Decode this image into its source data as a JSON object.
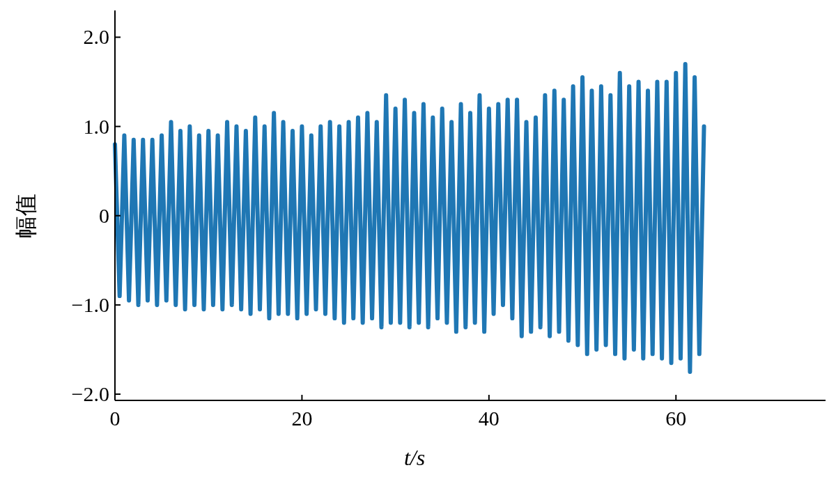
{
  "chart_data": {
    "type": "line",
    "xlabel": "t/s",
    "ylabel": "幅值",
    "xlim": [
      0,
      76
    ],
    "xticks": [
      0,
      20,
      40,
      60
    ],
    "ylim": [
      -2.07,
      2.3
    ],
    "yticks": [
      {
        "value": -2.0,
        "label": "−2.0"
      },
      {
        "value": -1.0,
        "label": "−1.0"
      },
      0,
      {
        "value": 1.0,
        "label": "1.0"
      },
      {
        "value": 2.0,
        "label": "2.0"
      }
    ],
    "grid": false,
    "marker": "none",
    "line_style": "solid",
    "x": [
      0,
      0.5,
      1,
      1.5,
      2,
      2.5,
      3,
      3.5,
      4,
      4.5,
      5,
      5.5,
      6,
      6.5,
      7,
      7.5,
      8,
      8.5,
      9,
      9.5,
      10,
      10.5,
      11,
      11.5,
      12,
      12.5,
      13,
      13.5,
      14,
      14.5,
      15,
      15.5,
      16,
      16.5,
      17,
      17.5,
      18,
      18.5,
      19,
      19.5,
      20,
      20.5,
      21,
      21.5,
      22,
      22.5,
      23,
      23.5,
      24,
      24.5,
      25,
      25.5,
      26,
      26.5,
      27,
      27.5,
      28,
      28.5,
      29,
      29.5,
      30,
      30.5,
      31,
      31.5,
      32,
      32.5,
      33,
      33.5,
      34,
      34.5,
      35,
      35.5,
      36,
      36.5,
      37,
      37.5,
      38,
      38.5,
      39,
      39.5,
      40,
      40.5,
      41,
      41.5,
      42,
      42.5,
      43,
      43.5,
      44,
      44.5,
      45,
      45.5,
      46,
      46.5,
      47,
      47.5,
      48,
      48.5,
      49,
      49.5,
      50,
      50.5,
      51,
      51.5,
      52,
      52.5,
      53,
      53.5,
      54,
      54.5,
      55,
      55.5,
      56,
      56.5,
      57,
      57.5,
      58,
      58.5,
      59,
      59.5,
      60,
      60.5,
      61,
      61.5,
      62,
      62.5,
      63
    ],
    "series": [
      {
        "color": "#1f77b4",
        "values": [
          0.8,
          -0.9,
          0.9,
          -0.95,
          0.85,
          -1.0,
          0.85,
          -0.95,
          0.85,
          -1.0,
          0.9,
          -0.95,
          1.05,
          -1.0,
          0.95,
          -1.05,
          1.0,
          -1.0,
          0.9,
          -1.05,
          0.95,
          -1.0,
          0.9,
          -1.05,
          1.05,
          -1.0,
          1.0,
          -1.05,
          0.95,
          -1.1,
          1.1,
          -1.05,
          1.0,
          -1.15,
          1.15,
          -1.1,
          1.05,
          -1.1,
          0.95,
          -1.15,
          1.0,
          -1.1,
          0.9,
          -1.05,
          1.0,
          -1.1,
          1.05,
          -1.15,
          1.0,
          -1.2,
          1.05,
          -1.15,
          1.1,
          -1.2,
          1.15,
          -1.15,
          1.05,
          -1.25,
          1.35,
          -1.2,
          1.2,
          -1.2,
          1.3,
          -1.25,
          1.15,
          -1.2,
          1.25,
          -1.25,
          1.1,
          -1.15,
          1.2,
          -1.2,
          1.05,
          -1.3,
          1.25,
          -1.25,
          1.15,
          -1.2,
          1.35,
          -1.3,
          1.2,
          -1.1,
          1.25,
          -1.0,
          1.3,
          -1.15,
          1.3,
          -1.35,
          1.05,
          -1.3,
          1.1,
          -1.25,
          1.35,
          -1.35,
          1.4,
          -1.3,
          1.3,
          -1.4,
          1.45,
          -1.45,
          1.55,
          -1.55,
          1.4,
          -1.5,
          1.45,
          -1.45,
          1.35,
          -1.55,
          1.6,
          -1.6,
          1.45,
          -1.5,
          1.5,
          -1.6,
          1.4,
          -1.55,
          1.5,
          -1.6,
          1.5,
          -1.65,
          1.6,
          -1.6,
          1.7,
          -1.75,
          1.55,
          -1.55,
          1.0
        ]
      }
    ]
  }
}
